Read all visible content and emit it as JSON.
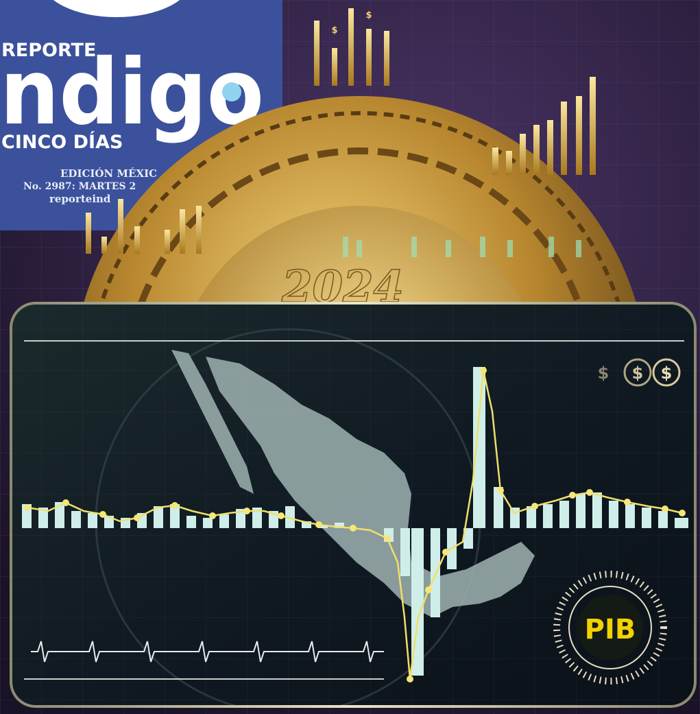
{
  "masthead": {
    "kicker": "REPORTE",
    "logo": "ndigo",
    "subtitle": "CINCO DÍAS",
    "edition": "EDICIÓN MÉXIC",
    "issue": "No. 2987: MARTES 2",
    "website": "reporteind"
  },
  "coin": {
    "year": "2024"
  },
  "dollar_signs": [
    "$",
    "$",
    "$",
    "$",
    "$"
  ],
  "badge": {
    "label": "PIB"
  }
}
